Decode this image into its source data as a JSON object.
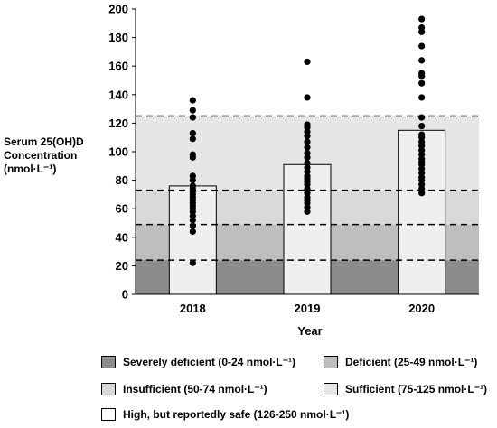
{
  "chart_data": {
    "type": "bar",
    "categories": [
      "2018",
      "2019",
      "2020"
    ],
    "values": [
      76,
      91,
      115
    ],
    "xlabel": "Year",
    "ylabel_lines": [
      "Serum 25(OH)D",
      "Concentration",
      "(nmol·L⁻¹)"
    ],
    "ylim": [
      0,
      200
    ],
    "yticks": [
      0,
      20,
      40,
      60,
      80,
      100,
      120,
      140,
      160,
      180,
      200
    ],
    "bands": [
      {
        "from": 0,
        "to": 24,
        "color": "#8c8c8c"
      },
      {
        "from": 24,
        "to": 49,
        "color": "#bebebe"
      },
      {
        "from": 49,
        "to": 73,
        "color": "#dad9d9"
      },
      {
        "from": 73,
        "to": 125,
        "color": "#e6e6e6"
      }
    ],
    "thresholds": [
      24,
      49,
      73,
      125
    ],
    "points": [
      [
        22,
        44,
        48,
        52,
        55,
        58,
        60,
        62,
        64,
        66,
        68,
        70,
        72,
        74,
        76,
        80,
        83,
        96,
        98,
        109,
        113,
        124,
        129,
        136
      ],
      [
        58,
        61,
        64,
        66,
        68,
        71,
        74,
        77,
        79,
        81,
        83,
        86,
        89,
        92,
        96,
        99,
        103,
        107,
        111,
        114,
        117,
        119,
        138,
        163
      ],
      [
        71,
        74,
        77,
        80,
        82,
        85,
        88,
        91,
        93,
        95,
        98,
        101,
        104,
        107,
        110,
        112,
        118,
        124,
        138,
        148,
        153,
        155,
        164,
        174,
        184,
        187,
        193
      ]
    ],
    "bar_color": "#efefef"
  },
  "legend": [
    {
      "label": "Severely deficient (0-24 nmol·L⁻¹)",
      "color": "#8c8c8c"
    },
    {
      "label": "Deficient (25-49 nmol·L⁻¹)",
      "color": "#bebebe"
    },
    {
      "label": "Insufficient (50-74 nmol·L⁻¹)",
      "color": "#dad9d9"
    },
    {
      "label": "Sufficient (75-125 nmol·L⁻¹)",
      "color": "#e6e6e6"
    },
    {
      "label": "High, but reportedly safe (126-250 nmol·L⁻¹)",
      "color": "#ffffff"
    }
  ]
}
